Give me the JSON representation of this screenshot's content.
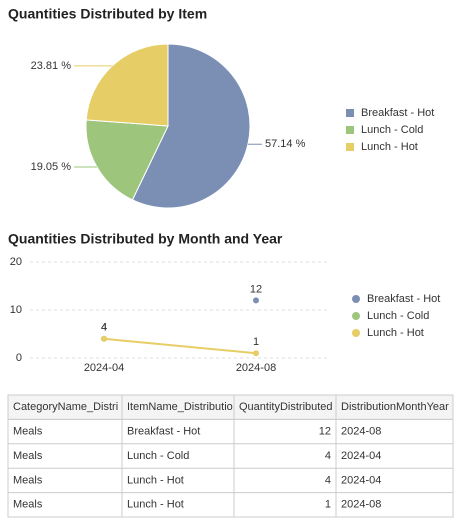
{
  "chart_data": [
    {
      "type": "pie",
      "title": "Quantities Distributed by Item",
      "categories": [
        "Breakfast - Hot",
        "Lunch - Cold",
        "Lunch - Hot"
      ],
      "values": [
        57.14,
        19.05,
        23.81
      ],
      "value_labels": [
        "57.14 %",
        "19.05 %",
        "23.81 %"
      ],
      "colors": [
        "#7b8fb5",
        "#9dc57c",
        "#e6cd65"
      ],
      "legend": "right"
    },
    {
      "type": "line",
      "title": "Quantities Distributed by Month and Year",
      "categories": [
        "2024-04",
        "2024-08"
      ],
      "series": [
        {
          "name": "Breakfast - Hot",
          "color": "#7b8fb5",
          "values": [
            null,
            12
          ]
        },
        {
          "name": "Lunch - Cold",
          "color": "#9dc57c",
          "values": [
            4,
            null
          ]
        },
        {
          "name": "Lunch - Hot",
          "color": "#e6cd65",
          "values": [
            4,
            1
          ]
        }
      ],
      "ylim": [
        0,
        20
      ],
      "yticks": [
        0,
        10,
        20
      ],
      "grid": true,
      "legend": "right"
    }
  ],
  "table": {
    "columns": [
      "CategoryName_Distrit",
      "ItemName_Distribution",
      "QuantityDistributed_",
      "DistributionMonthYear_"
    ],
    "rows": [
      [
        "Meals",
        "Breakfast - Hot",
        12,
        "2024-08"
      ],
      [
        "Meals",
        "Lunch - Cold",
        4,
        "2024-04"
      ],
      [
        "Meals",
        "Lunch - Hot",
        4,
        "2024-04"
      ],
      [
        "Meals",
        "Lunch - Hot",
        1,
        "2024-08"
      ]
    ]
  }
}
